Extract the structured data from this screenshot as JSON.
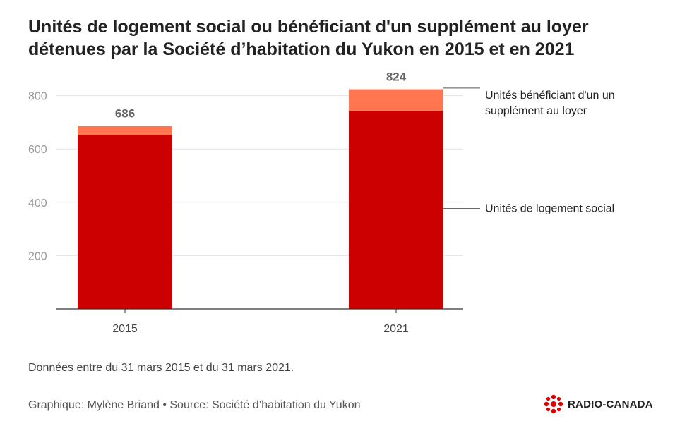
{
  "title": {
    "line1": "Unités de logement social ou bénéficiant d'un supplément au loyer",
    "line2": "détenues par la Société d’habitation du Yukon en 2015 et en 2021"
  },
  "chart_data": {
    "type": "bar",
    "stacked": true,
    "categories": [
      "2015",
      "2021"
    ],
    "series": [
      {
        "name": "Unités de logement social",
        "values": [
          653,
          743
        ],
        "color": "#cc0000"
      },
      {
        "name": "Unités bénéficiant d'un supplément au loyer",
        "values": [
          33,
          81
        ],
        "color": "#ff7651"
      }
    ],
    "totals": [
      686,
      824
    ],
    "ylim": [
      0,
      880
    ],
    "yticks": [
      200,
      400,
      600,
      800
    ],
    "grid": true,
    "legend_placement": "right",
    "legend_lines": {
      "supplement": [
        "Unités bénéficiant d'un un",
        "supplément au loyer"
      ],
      "social": [
        "Unités de logement social"
      ]
    },
    "xlabel": "",
    "ylabel": ""
  },
  "footer": {
    "note": "Données entre du 31 mars 2015 et du 31 mars 2021.",
    "credit": "Graphique: Mylène Briand • Source: Société d’habitation du Yukon",
    "logo_text": "RADIO-CANADA"
  },
  "colors": {
    "social": "#cc0000",
    "supplement": "#ff7651",
    "grid": "#e3e3e3",
    "axis": "#333333",
    "tick_text": "#999999"
  }
}
